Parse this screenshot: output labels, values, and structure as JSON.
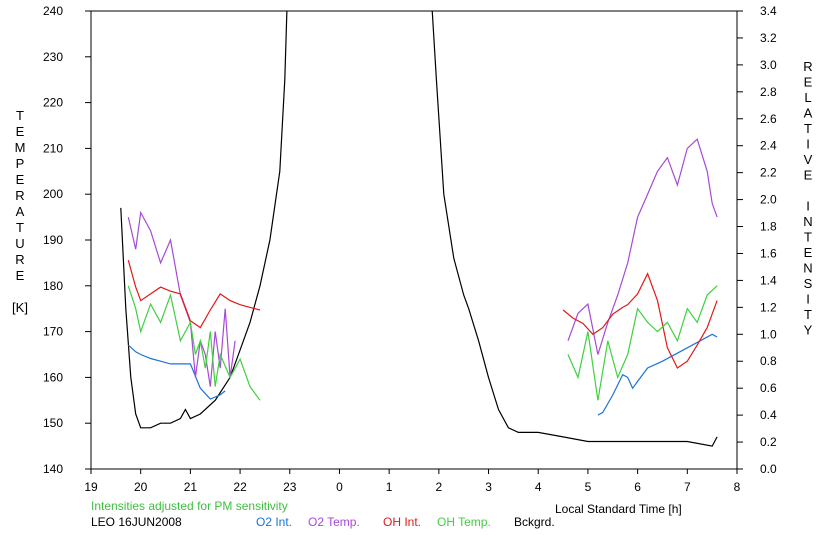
{
  "colors": {
    "o2_int": "#1a73d6",
    "o2_temp": "#a64ad6",
    "oh_int": "#e01a1a",
    "oh_temp": "#3fd03f",
    "bckgrd": "#000000",
    "note": "#3fbf3f"
  },
  "chart_data": {
    "type": "line",
    "xlabel": "Local Standard Time [h]",
    "x_ticks": [
      "19",
      "20",
      "21",
      "22",
      "23",
      "0",
      "1",
      "2",
      "3",
      "4",
      "5",
      "6",
      "7",
      "8"
    ],
    "xlim": [
      19,
      32
    ],
    "y_left": {
      "label_letters": [
        "T",
        "E",
        "M",
        "P",
        "E",
        "R",
        "A",
        "T",
        "U",
        "R",
        "E",
        "",
        "[K]"
      ],
      "ticks": [
        140,
        150,
        160,
        170,
        180,
        190,
        200,
        210,
        220,
        230,
        240
      ],
      "lim": [
        140,
        240
      ]
    },
    "y_right": {
      "label_letters": [
        "R",
        "E",
        "L",
        "A",
        "T",
        "I",
        "V",
        "E",
        "",
        "I",
        "N",
        "T",
        "E",
        "N",
        "S",
        "I",
        "T",
        "Y"
      ],
      "ticks": [
        "0.0",
        "0.2",
        "0.4",
        "0.6",
        "0.8",
        "1.0",
        "1.2",
        "1.4",
        "1.6",
        "1.8",
        "2.0",
        "2.2",
        "2.4",
        "2.6",
        "2.8",
        "3.0",
        "3.2",
        "3.4"
      ],
      "lim": [
        0,
        3.4
      ]
    },
    "note": "Intensities adjusted for PM sensitivity",
    "station": "LEO 16JUN2008",
    "legend": [
      "O2 Int.",
      "O2 Temp.",
      "OH Int.",
      "OH Temp.",
      "Bckgrd."
    ],
    "series": [
      {
        "name": "Bckgrd.",
        "axis": "left",
        "x": [
          19.6,
          19.7,
          19.8,
          19.9,
          20.0,
          20.2,
          20.4,
          20.6,
          20.8,
          20.9,
          21.0,
          21.2,
          21.5,
          21.8,
          22.0,
          22.2,
          22.4,
          22.6,
          22.8,
          22.9,
          22.95,
          25.85,
          25.95,
          26.1,
          26.3,
          26.5,
          26.6,
          26.8,
          27.0,
          27.2,
          27.4,
          27.6,
          27.8,
          28.0,
          28.5,
          29.0,
          29.5,
          30.0,
          30.5,
          31.0,
          31.5,
          31.6
        ],
        "values": [
          197,
          175,
          160,
          152,
          149,
          149,
          150,
          150,
          151,
          153,
          151,
          152,
          155,
          160,
          166,
          172,
          180,
          190,
          205,
          225,
          243,
          243,
          225,
          200,
          186,
          178,
          175,
          168,
          160,
          153,
          149,
          148,
          148,
          148,
          147,
          146,
          146,
          146,
          146,
          146,
          145,
          147
        ]
      },
      {
        "name": "O2 Int.",
        "axis": "right",
        "x": [
          19.75,
          19.9,
          20.0,
          20.2,
          20.4,
          20.6,
          21.0,
          21.2,
          21.4,
          21.6,
          21.7,
          29.2,
          29.3,
          29.5,
          29.7,
          29.8,
          29.9,
          30.0,
          30.2,
          30.5,
          31.0,
          31.5,
          31.6
        ],
        "values": [
          0.92,
          0.87,
          0.85,
          0.82,
          0.8,
          0.78,
          0.78,
          0.6,
          0.52,
          0.55,
          0.58,
          0.4,
          0.42,
          0.55,
          0.7,
          0.68,
          0.6,
          0.65,
          0.75,
          0.8,
          0.9,
          1.0,
          0.98
        ]
      },
      {
        "name": "O2 Temp.",
        "axis": "left",
        "x": [
          19.75,
          19.9,
          20.0,
          20.2,
          20.4,
          20.6,
          20.8,
          21.0,
          21.1,
          21.2,
          21.3,
          21.4,
          21.5,
          21.6,
          21.7,
          21.8,
          21.9,
          28.6,
          28.8,
          29.0,
          29.2,
          29.4,
          29.6,
          29.8,
          30.0,
          30.2,
          30.4,
          30.6,
          30.8,
          31.0,
          31.2,
          31.4,
          31.5,
          31.6
        ],
        "values": [
          195,
          188,
          196,
          192,
          185,
          190,
          178,
          172,
          160,
          168,
          165,
          158,
          170,
          162,
          175,
          160,
          168,
          168,
          174,
          176,
          165,
          172,
          178,
          185,
          195,
          200,
          205,
          208,
          202,
          210,
          212,
          205,
          198,
          195
        ]
      },
      {
        "name": "OH Int.",
        "axis": "right",
        "x": [
          19.75,
          19.9,
          20.0,
          20.2,
          20.4,
          20.6,
          20.8,
          21.0,
          21.2,
          21.4,
          21.6,
          21.8,
          22.0,
          22.2,
          22.4,
          28.5,
          28.7,
          28.9,
          29.1,
          29.3,
          29.5,
          29.7,
          29.8,
          30.0,
          30.2,
          30.4,
          30.6,
          30.8,
          31.0,
          31.2,
          31.4,
          31.6
        ],
        "values": [
          1.55,
          1.35,
          1.25,
          1.3,
          1.35,
          1.32,
          1.3,
          1.1,
          1.05,
          1.18,
          1.3,
          1.25,
          1.22,
          1.2,
          1.18,
          1.18,
          1.12,
          1.08,
          1.0,
          1.05,
          1.15,
          1.2,
          1.22,
          1.3,
          1.45,
          1.25,
          0.9,
          0.75,
          0.8,
          0.92,
          1.05,
          1.25
        ]
      },
      {
        "name": "OH Temp.",
        "axis": "left",
        "x": [
          19.75,
          19.9,
          20.0,
          20.2,
          20.4,
          20.6,
          20.8,
          21.0,
          21.1,
          21.2,
          21.3,
          21.4,
          21.5,
          21.6,
          21.8,
          22.0,
          22.2,
          22.4,
          28.6,
          28.8,
          29.0,
          29.2,
          29.4,
          29.6,
          29.8,
          30.0,
          30.2,
          30.4,
          30.6,
          30.8,
          31.0,
          31.2,
          31.4,
          31.6
        ],
        "values": [
          180,
          175,
          170,
          176,
          172,
          178,
          168,
          172,
          165,
          168,
          162,
          170,
          158,
          165,
          160,
          164,
          158,
          155,
          165,
          160,
          170,
          155,
          168,
          160,
          165,
          175,
          172,
          170,
          172,
          168,
          175,
          172,
          178,
          180
        ]
      }
    ]
  }
}
